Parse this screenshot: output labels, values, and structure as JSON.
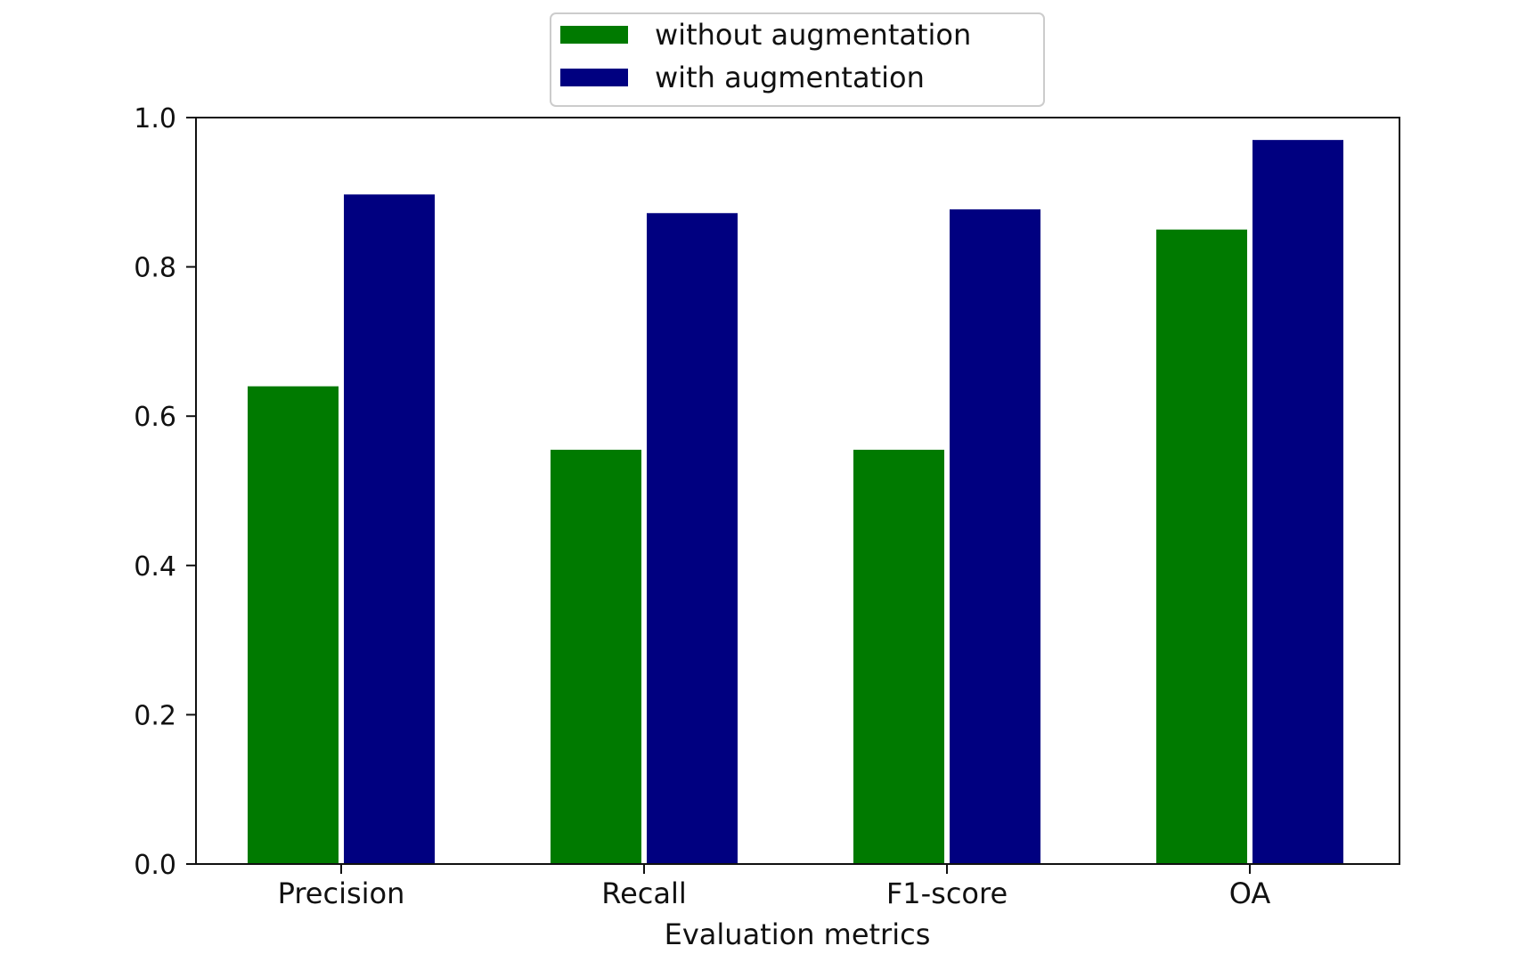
{
  "chart_data": {
    "type": "bar",
    "categories": [
      "Precision",
      "Recall",
      "F1-score",
      "OA"
    ],
    "series": [
      {
        "name": "without augmentation",
        "color": "#007a00",
        "values": [
          0.64,
          0.555,
          0.555,
          0.85
        ]
      },
      {
        "name": "with augmentation",
        "color": "#000080",
        "values": [
          0.897,
          0.872,
          0.877,
          0.97
        ]
      }
    ],
    "xlabel": "Evaluation metrics",
    "ylabel": "",
    "ylim": [
      0.0,
      1.0
    ],
    "yticks": [
      "0.0",
      "0.2",
      "0.4",
      "0.6",
      "0.8",
      "1.0"
    ],
    "grid": false,
    "legend_position": "top-center"
  }
}
